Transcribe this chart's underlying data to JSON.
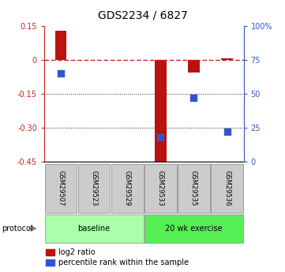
{
  "title": "GDS2234 / 6827",
  "samples": [
    "GSM29507",
    "GSM29523",
    "GSM29529",
    "GSM29533",
    "GSM29535",
    "GSM29536"
  ],
  "log2_ratio": [
    0.13,
    0.0,
    0.0,
    -0.47,
    -0.055,
    0.005
  ],
  "percentile_rank": [
    65.0,
    null,
    null,
    18.0,
    47.0,
    22.0
  ],
  "left_ylim": [
    -0.45,
    0.15
  ],
  "left_yticks": [
    0.15,
    0.0,
    -0.15,
    -0.3,
    -0.45
  ],
  "left_ytick_labels": [
    "0.15",
    "0",
    "-0.15",
    "-0.30",
    "-0.45"
  ],
  "right_ylim": [
    0,
    100
  ],
  "right_yticks": [
    100,
    75,
    50,
    25,
    0
  ],
  "right_ytick_labels": [
    "100%",
    "75",
    "50",
    "25",
    "0"
  ],
  "bar_color": "#bb1111",
  "dot_color": "#3355cc",
  "zero_line_color": "#cc2222",
  "grid_color": "#222222",
  "protocol_groups": [
    {
      "label": "baseline",
      "samples": [
        0,
        1,
        2
      ],
      "color": "#aaffaa"
    },
    {
      "label": "20 wk exercise",
      "samples": [
        3,
        4,
        5
      ],
      "color": "#55ee55"
    }
  ],
  "protocol_label": "protocol",
  "legend_bar_label": "log2 ratio",
  "legend_dot_label": "percentile rank within the sample",
  "bar_width": 0.35,
  "dot_size": 35,
  "sample_box_color": "#cccccc",
  "title_fontsize": 10,
  "tick_fontsize": 7,
  "label_fontsize": 7
}
